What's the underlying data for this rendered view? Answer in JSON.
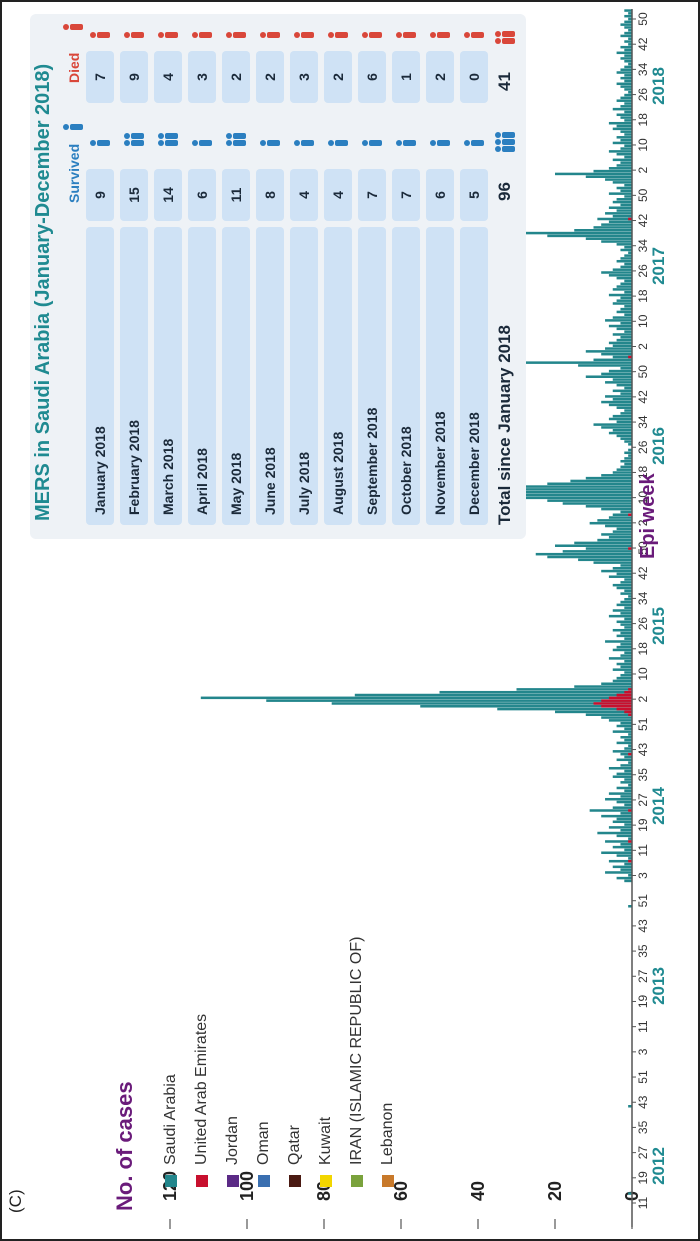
{
  "panel_label": "(C)",
  "chart_data": {
    "type": "bar",
    "ylabel": "No. of cases",
    "xlabel": "Epi week",
    "ylim": [
      0,
      120
    ],
    "yticks": [
      0,
      20,
      40,
      60,
      80,
      100,
      120
    ],
    "week_tick_labels": [
      "11",
      "19",
      "27",
      "35",
      "43",
      "51",
      "3",
      "11",
      "19",
      "27",
      "35",
      "43",
      "51",
      "3",
      "11",
      "19",
      "27",
      "35",
      "43",
      "51",
      "2",
      "10",
      "18",
      "26",
      "34",
      "42",
      "50",
      "2",
      "10",
      "18",
      "26",
      "34",
      "42",
      "50",
      "2",
      "10",
      "18",
      "26",
      "34",
      "42",
      "50",
      "2",
      "10",
      "18",
      "26",
      "34",
      "42",
      "50"
    ],
    "year_labels": [
      "2012",
      "2013",
      "2014",
      "2015",
      "2016",
      "2017",
      "2018"
    ],
    "legend": [
      {
        "name": "Saudi Arabia",
        "color": "#23868c"
      },
      {
        "name": "United Arab Emirates",
        "color": "#c8102e"
      },
      {
        "name": "Jordan",
        "color": "#5b2a86"
      },
      {
        "name": "Oman",
        "color": "#3a6fb0"
      },
      {
        "name": "Qatar",
        "color": "#4a1a12"
      },
      {
        "name": "Kuwait",
        "color": "#f2d600"
      },
      {
        "name": "IRAN (ISLAMIC REPUBLIC OF)",
        "color": "#7aa23c"
      },
      {
        "name": "Lebanon",
        "color": "#c8792a"
      }
    ],
    "series": [
      {
        "name": "Saudi Arabia",
        "values": [
          0,
          0,
          0,
          0,
          0,
          0,
          0,
          0,
          0,
          0,
          1,
          0,
          0,
          0,
          0,
          0,
          0,
          0,
          0,
          0,
          0,
          0,
          0,
          0,
          0,
          0,
          0,
          0,
          0,
          0,
          0,
          0,
          0,
          0,
          0,
          0,
          0,
          0,
          0,
          0,
          0,
          1,
          0,
          0,
          0,
          0,
          0,
          0,
          0,
          0,
          0,
          0,
          0,
          0,
          0,
          0,
          0,
          0,
          0,
          0,
          0,
          0,
          0,
          0,
          0,
          0,
          0,
          0,
          0,
          0,
          0,
          0,
          0,
          0,
          0,
          0,
          0,
          0,
          0,
          0,
          0,
          0,
          0,
          0,
          0,
          0,
          0,
          0,
          0,
          0,
          0,
          0,
          0,
          0,
          0,
          0,
          0,
          0,
          0,
          0,
          0,
          0,
          0,
          0,
          0,
          0,
          0,
          0,
          0,
          0,
          0,
          0,
          1,
          0,
          0,
          0,
          0,
          0,
          0,
          0,
          0,
          2,
          4,
          1,
          7,
          3,
          5,
          2,
          6,
          1,
          4,
          8,
          2,
          5,
          3,
          7,
          1,
          4,
          9,
          3,
          6,
          2,
          5,
          4,
          8,
          3,
          11,
          5,
          2,
          4,
          7,
          3,
          6,
          2,
          4,
          1,
          3,
          2,
          5,
          4,
          2,
          6,
          3,
          1,
          4,
          2,
          3,
          5,
          2,
          1,
          4,
          2,
          3,
          1,
          5,
          2,
          4,
          3,
          6,
          8,
          12,
          20,
          35,
          55,
          78,
          95,
          112,
          72,
          50,
          30,
          15,
          8,
          5,
          4,
          3,
          2,
          5,
          3,
          4,
          2,
          6,
          3,
          2,
          5,
          4,
          3,
          7,
          2,
          4,
          3,
          5,
          2,
          3,
          4,
          2,
          6,
          3,
          5,
          2,
          4,
          3,
          2,
          1,
          3,
          2,
          4,
          5,
          3,
          2,
          6,
          4,
          8,
          5,
          3,
          10,
          14,
          22,
          25,
          18,
          12,
          20,
          15,
          9,
          6,
          8,
          5,
          4,
          7,
          11,
          9,
          6,
          5,
          3,
          8,
          12,
          18,
          22,
          30,
          38,
          42,
          35,
          28,
          22,
          16,
          12,
          8,
          5,
          4,
          3,
          2,
          3,
          2,
          1,
          2,
          1,
          0,
          1,
          2,
          3,
          4,
          6,
          5,
          8,
          10,
          4,
          6,
          5,
          3,
          2,
          4,
          6,
          8,
          5,
          7,
          3,
          5,
          2,
          4,
          7,
          5,
          12,
          8,
          6,
          3,
          14,
          28,
          10,
          5,
          8,
          12,
          7,
          5,
          6,
          4,
          3,
          5,
          2,
          4,
          6,
          3,
          7,
          5,
          2,
          4,
          3,
          2,
          5,
          4,
          3,
          6,
          2,
          5,
          4,
          3,
          2,
          4,
          6,
          8,
          5,
          3,
          2,
          4,
          3,
          2,
          1,
          3,
          2,
          4,
          8,
          12,
          22,
          28,
          15,
          10,
          8,
          6,
          9,
          5,
          7,
          4,
          6,
          3,
          5,
          4,
          2,
          6,
          3,
          4,
          2,
          5,
          7,
          12,
          20,
          10,
          6,
          4,
          3,
          5,
          2,
          4,
          6,
          3,
          2,
          5,
          3,
          4,
          2,
          3,
          5,
          4,
          6,
          2,
          3,
          4,
          2,
          5,
          3,
          2,
          4,
          3,
          2,
          1,
          2,
          3,
          4,
          2,
          3,
          2,
          4,
          3,
          2,
          1,
          2,
          3,
          2,
          4,
          2,
          3,
          1,
          2,
          1,
          3,
          2,
          1,
          2,
          3,
          2,
          1,
          2,
          1,
          2
        ]
      },
      {
        "name": "United Arab Emirates",
        "values": [
          0,
          0,
          0,
          0,
          0,
          0,
          0,
          0,
          0,
          0,
          0,
          0,
          0,
          0,
          0,
          0,
          0,
          0,
          0,
          0,
          0,
          0,
          0,
          0,
          0,
          0,
          0,
          0,
          0,
          0,
          0,
          0,
          0,
          0,
          0,
          0,
          0,
          0,
          0,
          0,
          0,
          0,
          0,
          0,
          0,
          0,
          0,
          0,
          0,
          0,
          0,
          0,
          0,
          0,
          0,
          0,
          0,
          0,
          0,
          0,
          0,
          0,
          0,
          0,
          0,
          0,
          0,
          0,
          0,
          0,
          0,
          0,
          0,
          0,
          0,
          0,
          0,
          0,
          0,
          0,
          0,
          0,
          0,
          0,
          0,
          0,
          0,
          0,
          0,
          0,
          0,
          0,
          0,
          0,
          0,
          0,
          0,
          0,
          0,
          0,
          0,
          0,
          0,
          0,
          0,
          0,
          0,
          0,
          0,
          0,
          0,
          0,
          0,
          0,
          0,
          0,
          0,
          0,
          0,
          0,
          0,
          0,
          0,
          0,
          0,
          0,
          0,
          0,
          1,
          0,
          0,
          0,
          0,
          0,
          0,
          1,
          0,
          0,
          0,
          0,
          0,
          0,
          0,
          0,
          0,
          0,
          1,
          0,
          0,
          0,
          0,
          0,
          0,
          0,
          0,
          0,
          0,
          0,
          0,
          0,
          0,
          0,
          0,
          0,
          0,
          0,
          1,
          0,
          0,
          0,
          0,
          0,
          0,
          0,
          0,
          0,
          0,
          0,
          0,
          0,
          1,
          2,
          4,
          8,
          10,
          8,
          6,
          4,
          2,
          1,
          0,
          0,
          0,
          0,
          0,
          0,
          0,
          0,
          0,
          0,
          0,
          0,
          0,
          0,
          0,
          0,
          0,
          0,
          0,
          0,
          0,
          0,
          0,
          0,
          0,
          0,
          0,
          0,
          0,
          0,
          0,
          0,
          0,
          0,
          0,
          0,
          0,
          0,
          0,
          0,
          0,
          0,
          0,
          0,
          0,
          0,
          0,
          0,
          0,
          1,
          0,
          0,
          0,
          0,
          0,
          0,
          0,
          0,
          0,
          0,
          0,
          1,
          0,
          0,
          0,
          0,
          0,
          0,
          0,
          0,
          0,
          0,
          0,
          0,
          0,
          0,
          0,
          0,
          0,
          0,
          0,
          0,
          0,
          0,
          0,
          0,
          0,
          0,
          0,
          0,
          0,
          0,
          0,
          0,
          0,
          0,
          0,
          0,
          0,
          0,
          0,
          0,
          0,
          0,
          0,
          0,
          0,
          0,
          0,
          0,
          0,
          0,
          0,
          0,
          0,
          0,
          0,
          1,
          0,
          0,
          0,
          0,
          0,
          0,
          0,
          0,
          0,
          0,
          0,
          0,
          0,
          0,
          0,
          0,
          0,
          0,
          0,
          0,
          0,
          0,
          0,
          0,
          0,
          0,
          0,
          0,
          0,
          0,
          0,
          0,
          0,
          0,
          0,
          0,
          0,
          0,
          0,
          0,
          0,
          0,
          0,
          0,
          0,
          0,
          0,
          0,
          1,
          0,
          0,
          0,
          0,
          0,
          0,
          0,
          0,
          0,
          0,
          0,
          0,
          0,
          0,
          0,
          0,
          0,
          0,
          0,
          0,
          0,
          0,
          0,
          0,
          0,
          0,
          0,
          0,
          0,
          0,
          0,
          0,
          0,
          0,
          0,
          0,
          0,
          0,
          0,
          0,
          0,
          0,
          0,
          0,
          0,
          0,
          0,
          0,
          0,
          0,
          0,
          0,
          0,
          0,
          0,
          0,
          0,
          0,
          0,
          0,
          0,
          0,
          0,
          0,
          0,
          0
        ]
      }
    ]
  },
  "summary_table": {
    "title": "MERS in Saudi Arabia (January-December 2018)",
    "survived_label": "Survived",
    "died_label": "Died",
    "rows": [
      {
        "month": "January 2018",
        "survived": "9",
        "died": "7"
      },
      {
        "month": "February 2018",
        "survived": "15",
        "died": "9"
      },
      {
        "month": "March 2018",
        "survived": "14",
        "died": "4"
      },
      {
        "month": "April 2018",
        "survived": "6",
        "died": "3"
      },
      {
        "month": "May 2018",
        "survived": "11",
        "died": "2"
      },
      {
        "month": "June 2018",
        "survived": "8",
        "died": "2"
      },
      {
        "month": "July 2018",
        "survived": "4",
        "died": "3"
      },
      {
        "month": "August 2018",
        "survived": "4",
        "died": "2"
      },
      {
        "month": "September 2018",
        "survived": "7",
        "died": "6"
      },
      {
        "month": "October 2018",
        "survived": "7",
        "died": "1"
      },
      {
        "month": "November 2018",
        "survived": "6",
        "died": "2"
      },
      {
        "month": "December 2018",
        "survived": "5",
        "died": "0"
      }
    ],
    "total": {
      "label": "Total since January 2018",
      "survived": "96",
      "died": "41"
    },
    "colors": {
      "survived": "#2b7fc0",
      "died": "#d9473a"
    }
  }
}
